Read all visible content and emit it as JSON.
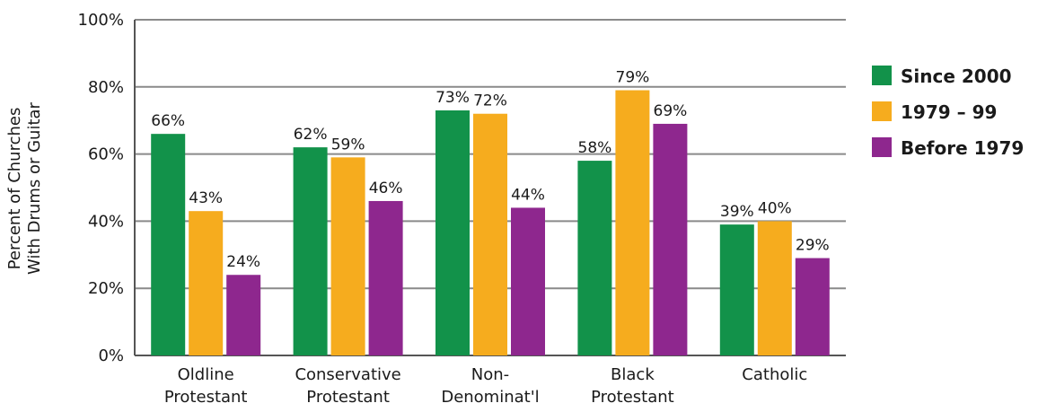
{
  "chart_data": {
    "type": "bar",
    "ylabel": [
      "Percent of Churches",
      "With Drums or Guitar"
    ],
    "ylim": [
      0,
      100
    ],
    "yticks": [
      "0%",
      "20%",
      "40%",
      "60%",
      "80%",
      "100%"
    ],
    "categories": [
      [
        "Oldline",
        "Protestant"
      ],
      [
        "Conservative",
        "Protestant"
      ],
      [
        "Non-",
        "Denominat'l"
      ],
      [
        "Black",
        "Protestant"
      ],
      [
        "Catholic"
      ]
    ],
    "series": [
      {
        "name": "Since 2000",
        "color": "#12924a",
        "values": [
          66,
          62,
          73,
          58,
          39
        ],
        "labels": [
          "66%",
          "62%",
          "73%",
          "58%",
          "39%"
        ]
      },
      {
        "name": "1979 – 99",
        "color": "#f6ac1e",
        "values": [
          43,
          59,
          72,
          79,
          40
        ],
        "labels": [
          "43%",
          "59%",
          "72%",
          "79%",
          "40%"
        ]
      },
      {
        "name": "Before 1979",
        "color": "#8e278e",
        "values": [
          24,
          46,
          44,
          69,
          29
        ],
        "labels": [
          "24%",
          "46%",
          "44%",
          "69%",
          "29%"
        ]
      }
    ],
    "grid": true,
    "legend": "right"
  }
}
